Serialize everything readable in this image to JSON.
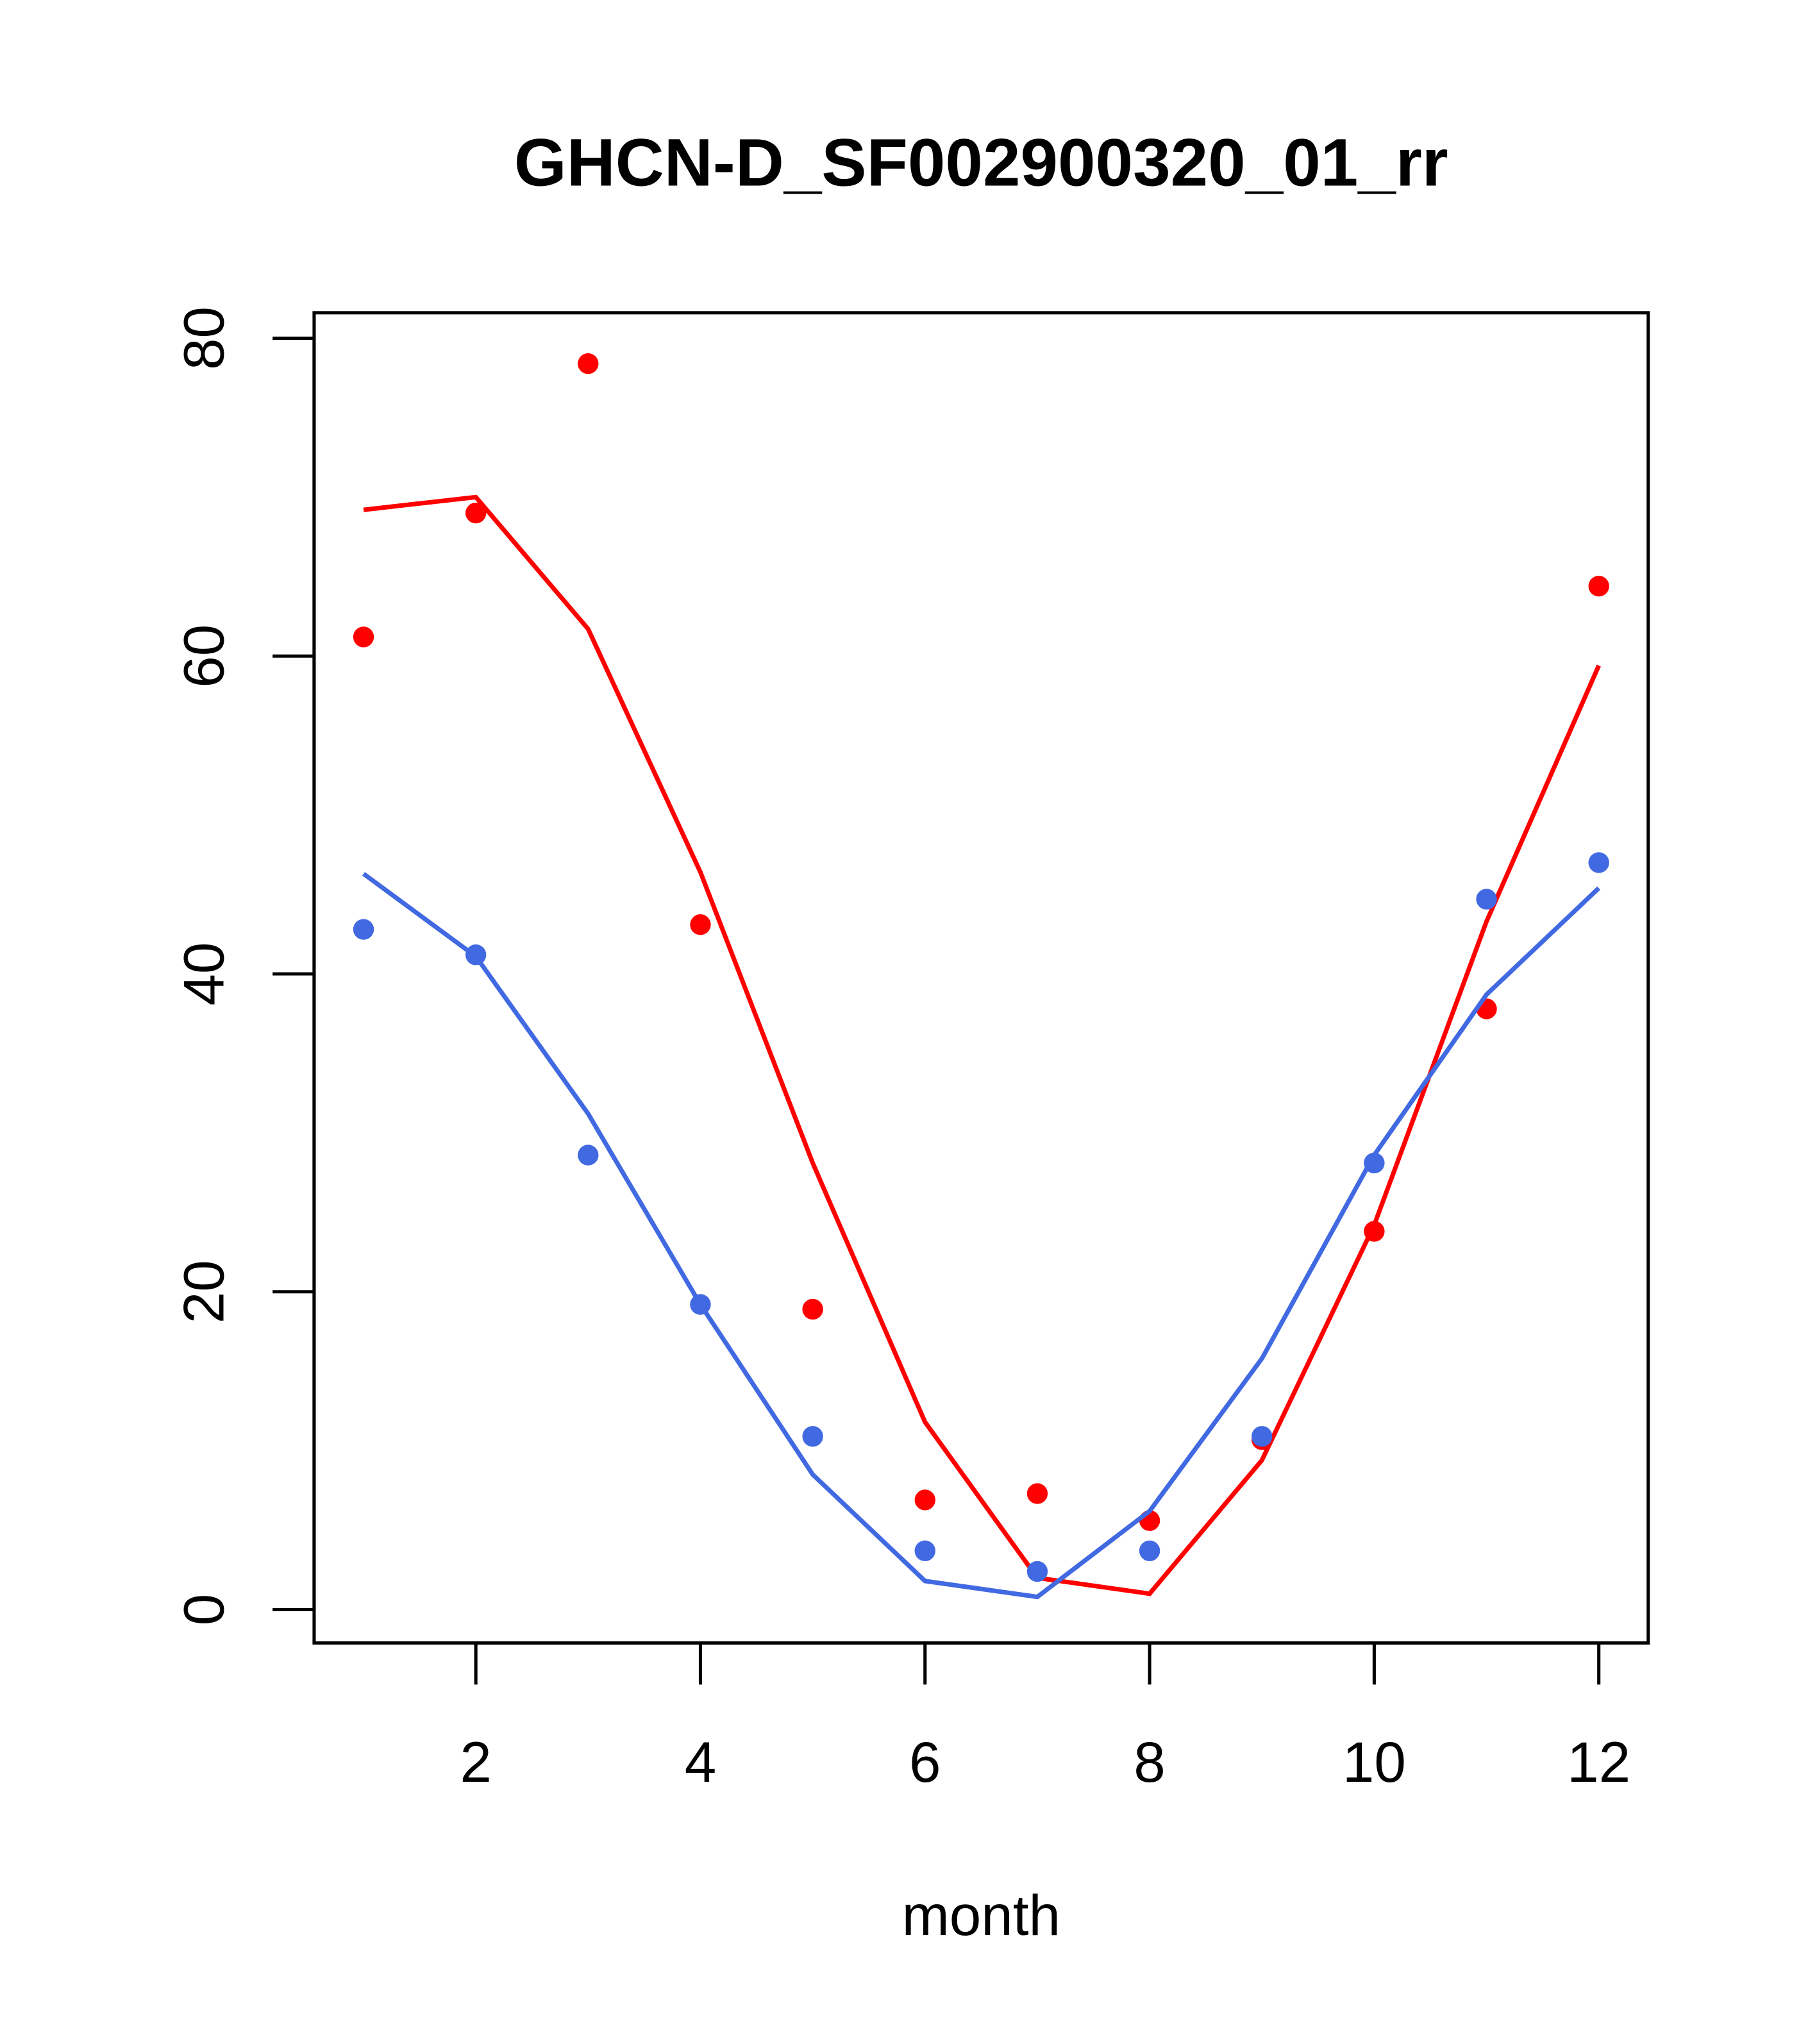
{
  "chart_data": {
    "type": "line",
    "title": "GHCN-D_SF002900320_01_rr",
    "xlabel": "month",
    "ylabel": "",
    "xlim": [
      0.56,
      12.44
    ],
    "ylim": [
      -2.1,
      81.6
    ],
    "xticks": [
      2,
      4,
      6,
      8,
      10,
      12
    ],
    "yticks": [
      0,
      20,
      40,
      60,
      80
    ],
    "x": [
      1,
      2,
      3,
      4,
      5,
      6,
      7,
      8,
      9,
      10,
      11,
      12
    ],
    "series": [
      {
        "name": "red points",
        "kind": "points",
        "color": "#FF0000",
        "values": [
          61.2,
          69.0,
          78.4,
          43.1,
          18.9,
          6.9,
          7.3,
          5.6,
          10.7,
          23.8,
          37.8,
          64.4
        ]
      },
      {
        "name": "red line",
        "kind": "line",
        "color": "#FF0000",
        "values": [
          69.2,
          70.0,
          61.7,
          46.4,
          28.1,
          11.8,
          2.0,
          1.0,
          9.4,
          24.2,
          43.3,
          59.4
        ]
      },
      {
        "name": "blue points",
        "kind": "points",
        "color": "#4169E1",
        "values": [
          42.8,
          41.2,
          28.6,
          19.2,
          10.9,
          3.7,
          2.4,
          3.7,
          10.9,
          28.1,
          44.7,
          47.0
        ]
      },
      {
        "name": "blue line",
        "kind": "line",
        "color": "#4169E1",
        "values": [
          46.3,
          41.1,
          31.2,
          19.2,
          8.5,
          1.8,
          0.8,
          6.2,
          15.8,
          28.6,
          38.7,
          45.4
        ]
      }
    ]
  }
}
